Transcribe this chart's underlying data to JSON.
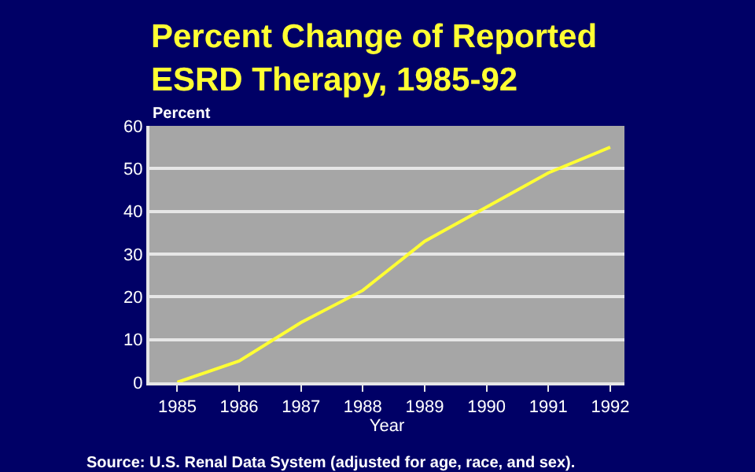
{
  "chart_data": {
    "type": "line",
    "title": "Percent Change of Reported\nESRD Therapy, 1985-92",
    "xlabel": "Year",
    "ylabel": "Percent",
    "x": [
      1985,
      1986,
      1987,
      1988,
      1989,
      1990,
      1991,
      1992
    ],
    "series": [
      {
        "color": "#ffff33",
        "values": [
          0,
          5,
          14,
          21.5,
          33,
          41,
          49,
          55
        ]
      }
    ],
    "xlim": [
      1984.55,
      1992.23
    ],
    "xticks": [
      1985,
      1986,
      1987,
      1988,
      1989,
      1990,
      1991,
      1992
    ],
    "ylim": [
      0,
      60
    ],
    "yticks": [
      0,
      10,
      20,
      30,
      40,
      50,
      60
    ],
    "grid": "y",
    "marker": "none",
    "line_style": "solid",
    "annotations": [
      "Source: U.S. Renal Data System (adjusted for age, race, and sex)."
    ]
  }
}
